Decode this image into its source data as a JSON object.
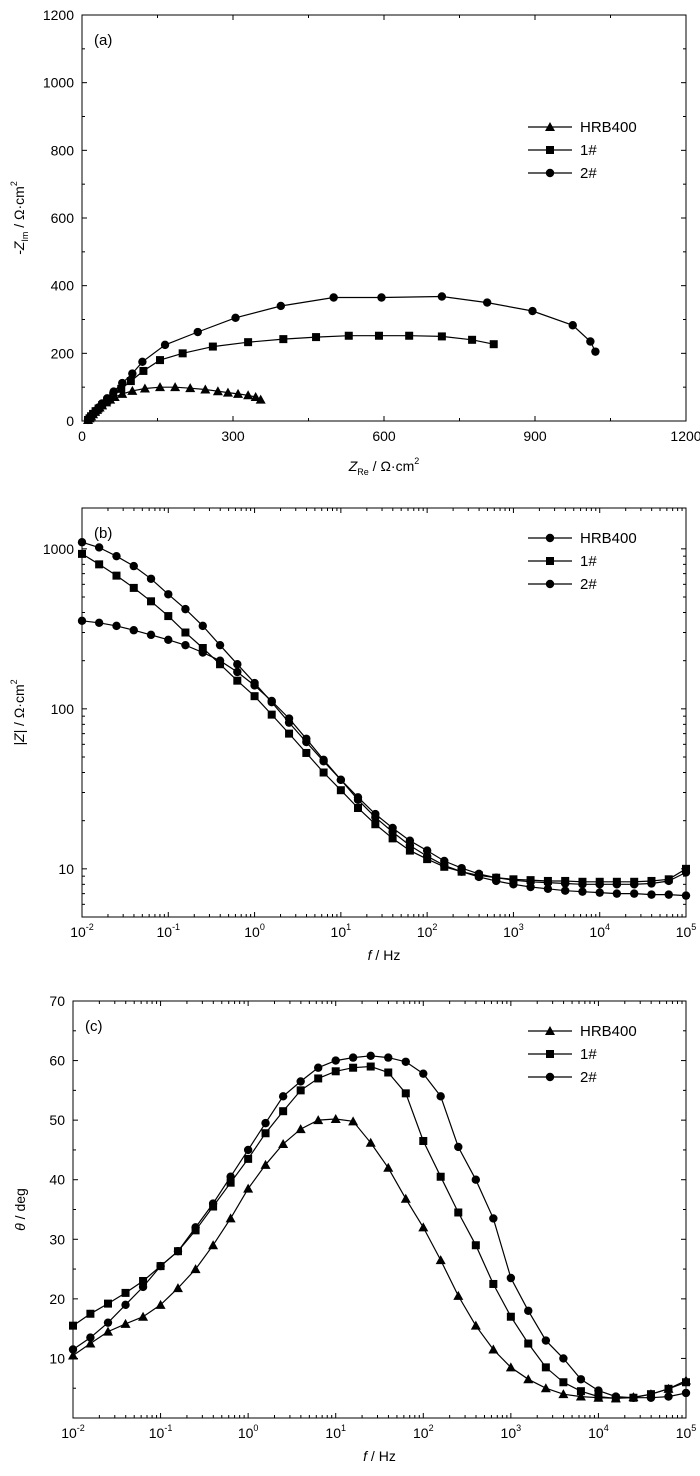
{
  "chart_data": [
    {
      "type": "scatter",
      "panel_label": "(a)",
      "xlabel": {
        "main": "Z",
        "sub": "Re",
        "unit": " / Ω·cm",
        "sup": "2"
      },
      "ylabel": {
        "main": "-Z",
        "sub": "Im",
        "unit": " / Ω·cm",
        "sup": "2"
      },
      "xlim": [
        0,
        1200
      ],
      "ylim": [
        0,
        1200
      ],
      "xticks": [
        0,
        300,
        600,
        900,
        1200
      ],
      "yticks": [
        0,
        200,
        400,
        600,
        800,
        1000,
        1200
      ],
      "legend_position": "top-right",
      "series": [
        {
          "name": "HRB400",
          "marker": "triangle",
          "x": [
            12,
            15,
            18,
            22,
            26,
            30,
            35,
            40,
            48,
            56,
            65,
            80,
            100,
            125,
            155,
            185,
            215,
            245,
            270,
            290,
            310,
            330,
            345,
            355
          ],
          "y": [
            3,
            8,
            14,
            20,
            27,
            33,
            40,
            46,
            55,
            63,
            71,
            80,
            89,
            96,
            100,
            100,
            97,
            93,
            88,
            84,
            80,
            76,
            71,
            63
          ]
        },
        {
          "name": "1#",
          "marker": "square",
          "x": [
            12,
            15,
            18,
            22,
            27,
            33,
            40,
            50,
            62,
            78,
            97,
            122,
            155,
            200,
            260,
            330,
            400,
            465,
            530,
            590,
            650,
            715,
            775,
            818
          ],
          "y": [
            3,
            8,
            14,
            21,
            29,
            37,
            47,
            60,
            75,
            95,
            118,
            148,
            180,
            200,
            220,
            233,
            242,
            248,
            252,
            252,
            252,
            250,
            240,
            227
          ]
        },
        {
          "name": "2#",
          "marker": "circle",
          "x": [
            12,
            15,
            18,
            22,
            27,
            33,
            40,
            50,
            63,
            80,
            100,
            120,
            165,
            230,
            305,
            395,
            500,
            595,
            715,
            805,
            895,
            975,
            1010,
            1020
          ],
          "y": [
            3,
            8,
            14,
            21,
            30,
            40,
            52,
            67,
            87,
            112,
            140,
            175,
            225,
            263,
            305,
            340,
            365,
            365,
            368,
            350,
            325,
            283,
            235,
            205
          ]
        }
      ]
    },
    {
      "type": "line",
      "panel_label": "(b)",
      "xlabel": {
        "main": "f",
        "unit": " / Hz"
      },
      "ylabel": {
        "main": "|Z|",
        "unit": " / Ω·cm",
        "sup": "2"
      },
      "xscale": "log",
      "yscale": "log",
      "xlim": [
        0.01,
        100000
      ],
      "ylim": [
        5,
        1800
      ],
      "xticks": [
        0.01,
        0.1,
        1,
        10,
        100,
        1000,
        10000,
        100000
      ],
      "xtick_labels": [
        [
          "10",
          "-2"
        ],
        [
          "10",
          "-1"
        ],
        [
          "10",
          "0"
        ],
        [
          "10",
          "1"
        ],
        [
          "10",
          "2"
        ],
        [
          "10",
          "3"
        ],
        [
          "10",
          "4"
        ],
        [
          "10",
          "5"
        ]
      ],
      "yticks": [
        10,
        100,
        1000
      ],
      "ytick_labels": [
        "10",
        "100",
        "1000"
      ],
      "legend_position": "top-right",
      "series": [
        {
          "name": "HRB400",
          "marker": "circle",
          "x": [
            0.01,
            0.0158,
            0.0251,
            0.0398,
            0.0631,
            0.1,
            0.158,
            0.251,
            0.398,
            0.631,
            1,
            1.58,
            2.51,
            3.98,
            6.31,
            10,
            15.8,
            25.1,
            39.8,
            63.1,
            100,
            158,
            251,
            398,
            631,
            1000,
            1580,
            2510,
            3980,
            6310,
            10000,
            15800,
            25100,
            39800,
            63100,
            100000
          ],
          "y": [
            355,
            345,
            330,
            310,
            290,
            270,
            250,
            225,
            200,
            170,
            140,
            112,
            87,
            65,
            48,
            36,
            27,
            21,
            17,
            14,
            12,
            10.5,
            9.6,
            8.9,
            8.4,
            8.0,
            7.7,
            7.5,
            7.3,
            7.2,
            7.1,
            7.0,
            7.0,
            6.9,
            6.9,
            6.8
          ]
        },
        {
          "name": "1#",
          "marker": "square",
          "x": [
            0.01,
            0.0158,
            0.0251,
            0.0398,
            0.0631,
            0.1,
            0.158,
            0.251,
            0.398,
            0.631,
            1,
            1.58,
            2.51,
            3.98,
            6.31,
            10,
            15.8,
            25.1,
            39.8,
            63.1,
            100,
            158,
            251,
            398,
            631,
            1000,
            1580,
            2510,
            3980,
            6310,
            10000,
            15800,
            25100,
            39800,
            63100,
            100000
          ],
          "y": [
            930,
            800,
            680,
            570,
            470,
            380,
            300,
            240,
            190,
            150,
            120,
            92,
            70,
            53,
            40,
            31,
            24,
            19,
            15.5,
            13,
            11.5,
            10.3,
            9.6,
            9.1,
            8.8,
            8.6,
            8.5,
            8.4,
            8.4,
            8.3,
            8.3,
            8.3,
            8.3,
            8.4,
            8.6,
            10
          ]
        },
        {
          "name": "2#",
          "marker": "circle",
          "x": [
            0.01,
            0.0158,
            0.0251,
            0.0398,
            0.0631,
            0.1,
            0.158,
            0.251,
            0.398,
            0.631,
            1,
            1.58,
            2.51,
            3.98,
            6.31,
            10,
            15.8,
            25.1,
            39.8,
            63.1,
            100,
            158,
            251,
            398,
            631,
            1000,
            1580,
            2510,
            3980,
            6310,
            10000,
            15800,
            25100,
            39800,
            63100,
            100000
          ],
          "y": [
            1100,
            1020,
            900,
            780,
            650,
            520,
            420,
            330,
            250,
            190,
            145,
            110,
            82,
            62,
            47,
            36,
            28,
            22,
            18,
            15,
            13,
            11.2,
            10.1,
            9.3,
            8.8,
            8.5,
            8.3,
            8.2,
            8.1,
            8.0,
            8.0,
            8.0,
            8.0,
            8.1,
            8.4,
            9.5
          ]
        }
      ]
    },
    {
      "type": "line",
      "panel_label": "(c)",
      "xlabel": {
        "main": "f",
        "unit": " / Hz"
      },
      "ylabel": {
        "main": "θ",
        "unit": " / deg"
      },
      "xscale": "log",
      "xlim": [
        0.01,
        100000
      ],
      "ylim": [
        0,
        70
      ],
      "xticks": [
        0.01,
        0.1,
        1,
        10,
        100,
        1000,
        10000,
        100000
      ],
      "xtick_labels": [
        [
          "10",
          "-2"
        ],
        [
          "10",
          "-1"
        ],
        [
          "10",
          "0"
        ],
        [
          "10",
          "1"
        ],
        [
          "10",
          "2"
        ],
        [
          "10",
          "3"
        ],
        [
          "10",
          "4"
        ],
        [
          "10",
          "5"
        ]
      ],
      "yticks": [
        10,
        20,
        30,
        40,
        50,
        60,
        70
      ],
      "legend_position": "top-right",
      "series": [
        {
          "name": "HRB400",
          "marker": "triangle",
          "x": [
            0.01,
            0.0158,
            0.0251,
            0.0398,
            0.0631,
            0.1,
            0.158,
            0.251,
            0.398,
            0.631,
            1,
            1.58,
            2.51,
            3.98,
            6.31,
            10,
            15.8,
            25.1,
            39.8,
            63.1,
            100,
            158,
            251,
            398,
            631,
            1000,
            1580,
            2510,
            3980,
            6310,
            10000,
            15800,
            25100,
            39800,
            63100,
            100000
          ],
          "y": [
            10.5,
            12.5,
            14.5,
            15.8,
            17.0,
            19.0,
            21.8,
            25.0,
            29.0,
            33.5,
            38.5,
            42.5,
            46.0,
            48.5,
            50.0,
            50.2,
            49.8,
            46.2,
            42.0,
            36.8,
            32.0,
            26.5,
            20.5,
            15.5,
            11.5,
            8.5,
            6.5,
            5.0,
            4.0,
            3.6,
            3.4,
            3.3,
            3.5,
            4.0,
            4.9,
            6.3
          ]
        },
        {
          "name": "1#",
          "marker": "square",
          "x": [
            0.01,
            0.0158,
            0.0251,
            0.0398,
            0.0631,
            0.1,
            0.158,
            0.251,
            0.398,
            0.631,
            1,
            1.58,
            2.51,
            3.98,
            6.31,
            10,
            15.8,
            25.1,
            39.8,
            63.1,
            100,
            158,
            251,
            398,
            631,
            1000,
            1580,
            2510,
            3980,
            6310,
            10000,
            15800,
            25100,
            39800,
            63100,
            100000
          ],
          "y": [
            15.5,
            17.5,
            19.2,
            21.0,
            23.0,
            25.5,
            28.0,
            31.5,
            35.5,
            39.5,
            43.5,
            47.8,
            51.5,
            55.0,
            57.0,
            58.2,
            58.8,
            59.0,
            58.0,
            54.5,
            46.5,
            40.5,
            34.5,
            29.0,
            22.5,
            17.0,
            12.5,
            8.5,
            6.0,
            4.5,
            3.6,
            3.3,
            3.4,
            4.0,
            4.9,
            6.0
          ]
        },
        {
          "name": "2#",
          "marker": "circle",
          "x": [
            0.01,
            0.0158,
            0.0251,
            0.0398,
            0.0631,
            0.1,
            0.158,
            0.251,
            0.398,
            0.631,
            1,
            1.58,
            2.51,
            3.98,
            6.31,
            10,
            15.8,
            25.1,
            39.8,
            63.1,
            100,
            158,
            251,
            398,
            631,
            1000,
            1580,
            2510,
            3980,
            6310,
            10000,
            15800,
            25100,
            39800,
            63100,
            100000
          ],
          "y": [
            11.5,
            13.5,
            16.0,
            19.0,
            22.0,
            25.5,
            28.0,
            32.0,
            36.0,
            40.5,
            45.0,
            49.5,
            54.0,
            56.5,
            58.8,
            60.0,
            60.5,
            60.8,
            60.5,
            59.8,
            57.8,
            54.0,
            45.5,
            40.0,
            33.5,
            23.5,
            18.0,
            13.0,
            10.0,
            6.5,
            4.6,
            3.6,
            3.4,
            3.4,
            3.6,
            4.2
          ]
        }
      ]
    }
  ]
}
